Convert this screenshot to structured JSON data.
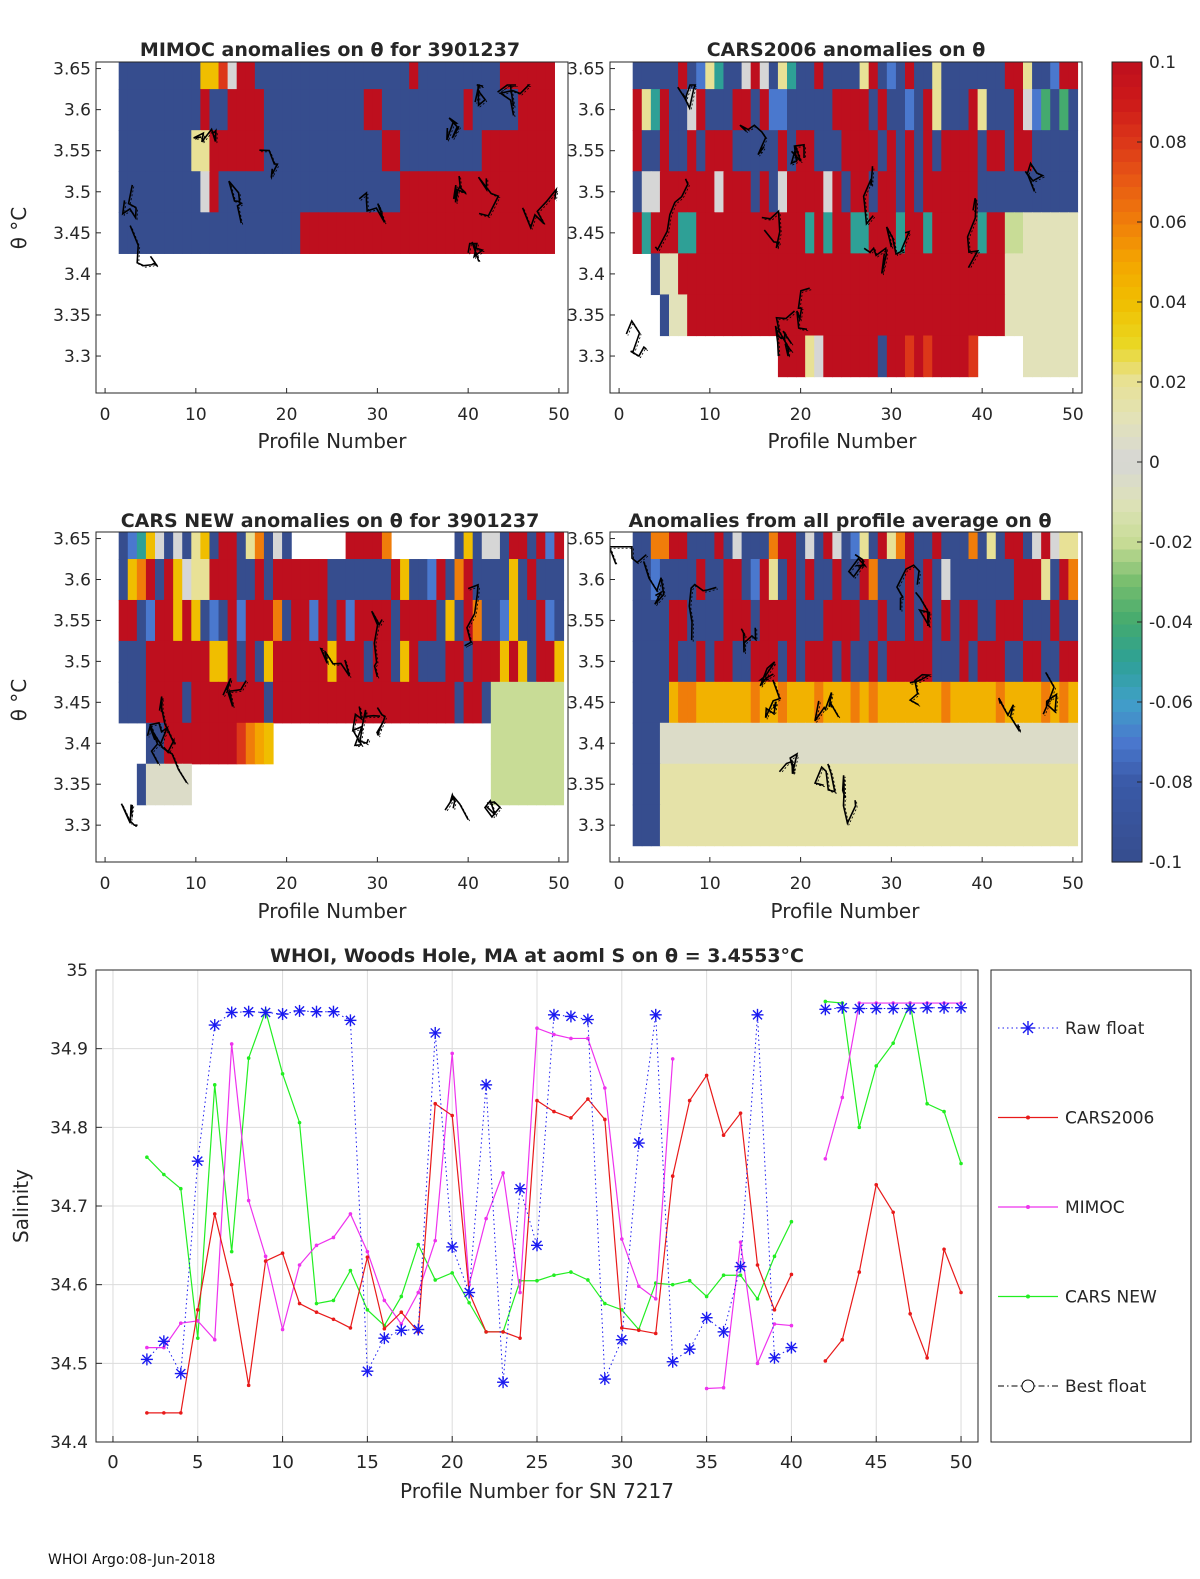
{
  "footer": "WHOI Argo:08-Jun-2018",
  "colors": {
    "raw": "#1a1af0",
    "cars2006": "#e81a1a",
    "mimoc": "#ee33ee",
    "carsnew": "#22ee22",
    "grid": "#dcdcdc",
    "axis": "#262626",
    "nodata": "#ffffff"
  },
  "colorbar": {
    "ticks": [
      "0.1",
      "0.08",
      "0.06",
      "0.04",
      "0.02",
      "0",
      "-0.02",
      "-0.04",
      "-0.06",
      "-0.08",
      "-0.1"
    ],
    "values": [
      0.1,
      0.08,
      0.06,
      0.04,
      0.02,
      0,
      -0.02,
      -0.04,
      -0.06,
      -0.08,
      -0.1
    ],
    "range": [
      -0.1,
      0.1
    ]
  },
  "chart_data": [
    {
      "type": "heatmap",
      "id": "mimoc",
      "title": "MIMOC anomalies on θ  for 3901237",
      "xlabel": "Profile Number",
      "ylabel": "θ °C",
      "xlim": [
        -1,
        51
      ],
      "ylim": [
        3.255,
        3.658
      ],
      "xticks": [
        "0",
        "10",
        "20",
        "30",
        "40",
        "50"
      ],
      "yticks": [
        "3.3",
        "3.35",
        "3.4",
        "3.45",
        "3.5",
        "3.55",
        "3.6",
        "3.65"
      ],
      "levels": [
        3.65,
        3.6,
        3.55,
        3.5,
        3.45,
        3.4
      ],
      "rows": [
        "_+++++++++KKPZ~~+++++++++++++++++~+++++++++~~~~~~",
        "_+++++++++~++~~~~+++++++++++~~+++++++++~+++++~~~~",
        "_++++++++YY~~~~~~+++++++++++++~~+++++++++~~~~~~~~",
        "_+++++++++Z~++++++++++++++++++++~~~~~~~~~~~~~~~~~",
        "+++++++++++++++++++++~~~~~~~~~~~~~~~~~~~~~~~~~~~~",
        "_________________________________________________"
      ],
      "anomaly_codes": "+ = -0.1 blue, ~ = 0.1 red, Z = 0 grey, Y = 0.02 pale yellow, K = 0.04 yellow, P = 0.08 orange, _ = no data"
    },
    {
      "type": "heatmap",
      "id": "cars2006",
      "title": "CARS2006 anomalies on θ",
      "xlabel": "Profile Number",
      "ylim": [
        3.255,
        3.658
      ],
      "xlim": [
        -1,
        51
      ],
      "xticks": [
        "0",
        "10",
        "20",
        "30",
        "40",
        "50"
      ],
      "yticks": [
        "3.3",
        "3.35",
        "3.4",
        "3.45",
        "3.5",
        "3.55",
        "3.6",
        "3.65"
      ]
    },
    {
      "type": "heatmap",
      "id": "carsnew",
      "title": "CARS NEW anomalies on θ for 3901237",
      "xlabel": "Profile Number",
      "ylabel": "θ °C",
      "xlim": [
        -1,
        51
      ],
      "ylim": [
        3.255,
        3.658
      ],
      "xticks": [
        "0",
        "10",
        "20",
        "30",
        "40",
        "50"
      ],
      "yticks": [
        "3.3",
        "3.35",
        "3.4",
        "3.45",
        "3.5",
        "3.55",
        "3.6",
        "3.65"
      ]
    },
    {
      "type": "heatmap",
      "id": "allavg",
      "title": "Anomalies from all profile average on θ",
      "xlabel": "Profile Number",
      "xlim": [
        -1,
        51
      ],
      "ylim": [
        3.255,
        3.658
      ],
      "xticks": [
        "0",
        "10",
        "20",
        "30",
        "40",
        "50"
      ],
      "yticks": [
        "3.3",
        "3.35",
        "3.4",
        "3.45",
        "3.5",
        "3.55",
        "3.6",
        "3.65"
      ]
    },
    {
      "type": "line",
      "id": "salinity",
      "title": "WHOI, Woods Hole, MA at aoml S on θ = 3.4553°C",
      "xlabel": "Profile Number for SN 7217",
      "ylabel": "Salinity",
      "xlim": [
        -1,
        51
      ],
      "ylim": [
        34.4,
        35.0
      ],
      "xticks": [
        0,
        5,
        10,
        15,
        20,
        25,
        30,
        35,
        40,
        45,
        50
      ],
      "yticks": [
        34.4,
        34.5,
        34.6,
        34.7,
        34.8,
        34.9,
        35
      ],
      "ytick_labels": [
        "34.4",
        "34.5",
        "34.6",
        "34.7",
        "34.8",
        "34.9",
        "35"
      ],
      "legend": [
        "Raw float",
        "CARS2006",
        "MIMOC",
        "CARS NEW",
        "Best float"
      ],
      "series": [
        {
          "name": "Raw float",
          "x": [
            2,
            3,
            4,
            5,
            6,
            7,
            8,
            9,
            10,
            11,
            12,
            13,
            14,
            15,
            16,
            17,
            18,
            19,
            20,
            21,
            22,
            23,
            24,
            25,
            26,
            27,
            28,
            29,
            30,
            31,
            32,
            33,
            34,
            35,
            36,
            37,
            38,
            39,
            40,
            41,
            42,
            43,
            44,
            45,
            46,
            47,
            48,
            49,
            50
          ],
          "values": [
            34.505,
            34.528,
            34.487,
            34.757,
            34.93,
            34.946,
            34.947,
            34.946,
            34.944,
            34.948,
            34.947,
            34.947,
            34.936,
            34.49,
            34.532,
            34.542,
            34.543,
            34.92,
            34.648,
            34.59,
            34.854,
            34.476,
            34.722,
            34.65,
            34.943,
            34.941,
            34.937,
            34.48,
            34.53,
            34.78,
            34.943,
            34.502,
            34.518,
            34.558,
            34.54,
            34.623,
            34.943,
            34.507,
            34.52,
            null,
            34.95,
            34.952,
            34.951,
            34.951,
            34.951,
            34.951,
            34.952,
            34.952,
            34.952
          ]
        },
        {
          "name": "CARS2006",
          "x": [
            2,
            3,
            4,
            5,
            6,
            7,
            8,
            9,
            10,
            11,
            12,
            13,
            14,
            15,
            16,
            17,
            18,
            19,
            20,
            21,
            22,
            23,
            24,
            25,
            26,
            27,
            28,
            29,
            30,
            31,
            32,
            33,
            34,
            35,
            36,
            37,
            38,
            39,
            40,
            41,
            42,
            43,
            44,
            45,
            46,
            47,
            48,
            49,
            50
          ],
          "values": [
            34.437,
            34.437,
            34.437,
            34.568,
            34.69,
            34.6,
            34.472,
            34.63,
            34.64,
            34.576,
            34.565,
            34.556,
            34.545,
            34.635,
            34.544,
            34.565,
            34.54,
            34.83,
            34.815,
            34.59,
            34.54,
            34.54,
            34.532,
            34.834,
            34.82,
            34.812,
            34.836,
            34.81,
            34.545,
            34.542,
            34.538,
            34.738,
            34.834,
            34.866,
            34.79,
            34.818,
            34.625,
            34.568,
            34.613,
            null,
            34.503,
            34.53,
            34.616,
            34.727,
            34.692,
            34.563,
            34.507,
            34.645,
            34.59
          ]
        },
        {
          "name": "MIMOC",
          "x": [
            2,
            3,
            4,
            5,
            6,
            7,
            8,
            9,
            10,
            11,
            12,
            13,
            14,
            15,
            16,
            17,
            18,
            19,
            20,
            21,
            22,
            23,
            24,
            25,
            26,
            27,
            28,
            29,
            30,
            31,
            32,
            33,
            34,
            35,
            36,
            37,
            38,
            39,
            40,
            41,
            42,
            43,
            44,
            45,
            46,
            47,
            48,
            49,
            50
          ],
          "values": [
            34.52,
            34.52,
            34.551,
            34.554,
            34.53,
            34.906,
            34.707,
            34.636,
            34.543,
            34.625,
            34.65,
            34.66,
            34.69,
            34.642,
            34.58,
            34.55,
            34.59,
            34.656,
            34.894,
            34.6,
            34.684,
            34.742,
            34.59,
            34.926,
            34.918,
            34.913,
            34.913,
            34.85,
            34.658,
            34.598,
            34.582,
            34.887,
            null,
            34.468,
            34.469,
            34.654,
            34.5,
            34.55,
            34.548,
            null,
            34.76,
            34.838,
            34.958,
            34.958,
            34.958,
            34.958,
            34.958,
            34.958,
            34.958
          ]
        },
        {
          "name": "CARS NEW",
          "x": [
            2,
            3,
            4,
            5,
            6,
            7,
            8,
            9,
            10,
            11,
            12,
            13,
            14,
            15,
            16,
            17,
            18,
            19,
            20,
            21,
            22,
            23,
            24,
            25,
            26,
            27,
            28,
            29,
            30,
            31,
            32,
            33,
            34,
            35,
            36,
            37,
            38,
            39,
            40,
            41,
            42,
            43,
            44,
            45,
            46,
            47,
            48,
            49,
            50
          ],
          "values": [
            34.762,
            34.74,
            34.722,
            34.532,
            34.854,
            34.642,
            34.888,
            34.948,
            34.868,
            34.806,
            34.576,
            34.58,
            34.618,
            34.568,
            34.548,
            34.585,
            34.651,
            34.606,
            34.615,
            34.577,
            34.54,
            34.54,
            34.605,
            34.605,
            34.612,
            34.616,
            34.606,
            34.576,
            34.568,
            34.543,
            34.602,
            34.6,
            34.605,
            34.585,
            34.612,
            34.612,
            34.582,
            34.636,
            34.68,
            null,
            34.96,
            34.958,
            34.8,
            34.878,
            34.907,
            34.958,
            34.83,
            34.82,
            34.754
          ]
        },
        {
          "name": "Best float",
          "x": [],
          "values": []
        }
      ]
    }
  ]
}
